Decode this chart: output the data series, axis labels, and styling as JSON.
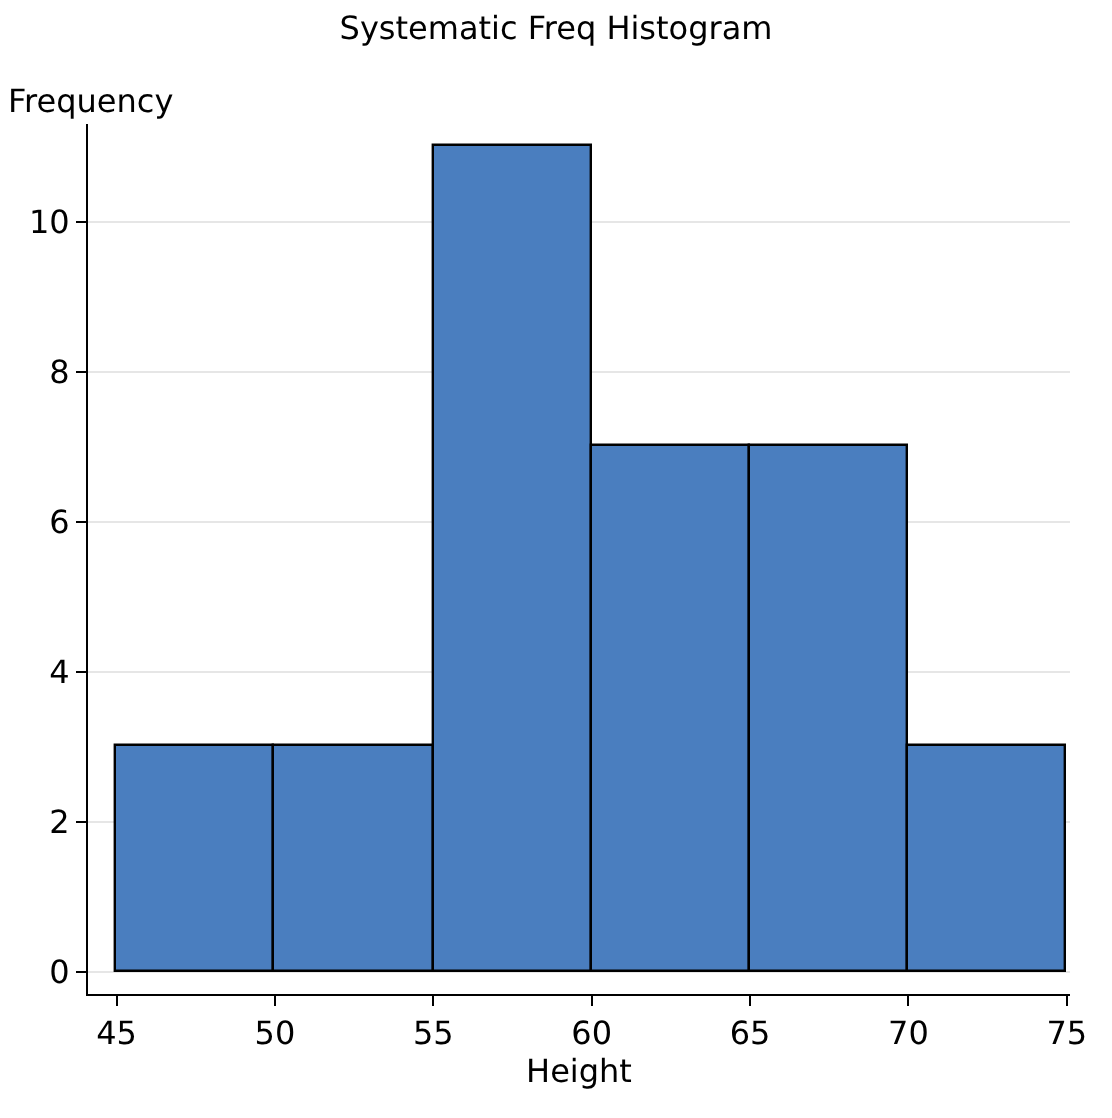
{
  "chart_data": {
    "type": "histogram",
    "title": "Systematic Freq Histogram",
    "xlabel": "Height",
    "ylabel": "Frequency",
    "bins": [
      45,
      50,
      55,
      60,
      65,
      70,
      75
    ],
    "values": [
      3,
      3,
      11,
      7,
      7,
      3
    ],
    "color": "#4a7ebf",
    "xlim": [
      44.1,
      75.1
    ],
    "xticks": [
      45,
      50,
      55,
      60,
      65,
      70,
      75
    ],
    "ylim": [
      -0.3,
      11.3
    ],
    "yticks": [
      0,
      2,
      4,
      6,
      8,
      10
    ],
    "grid": "y"
  }
}
